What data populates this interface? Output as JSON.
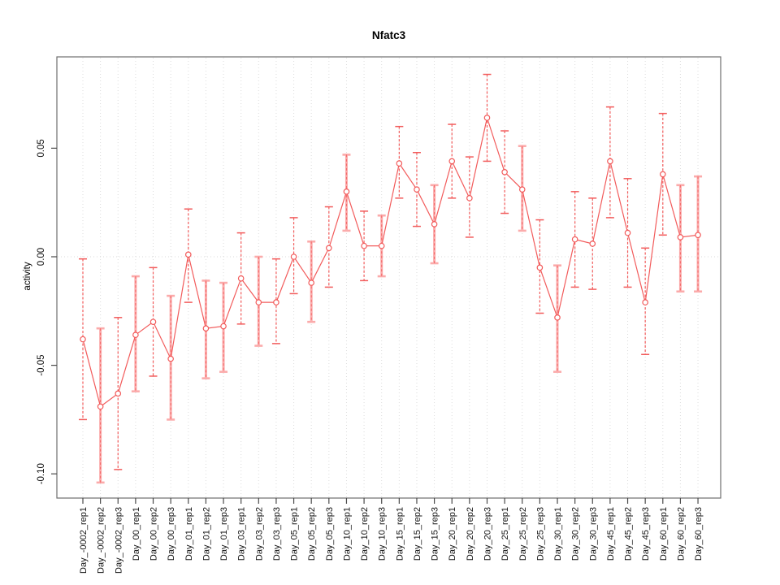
{
  "chart_data": {
    "type": "line",
    "subtype": "points-with-error-bars",
    "title": "Nfatc3",
    "xlabel": "",
    "ylabel": "activity",
    "ylim": [
      -0.113,
      0.092
    ],
    "yticks": [
      {
        "value": 0.05,
        "label": "0.05"
      },
      {
        "value": 0.0,
        "label": "0.00"
      },
      {
        "value": -0.05,
        "label": "-0.05"
      },
      {
        "value": -0.1,
        "label": "-0.10"
      }
    ],
    "grid": {
      "vertical": "dotted line at every category",
      "horizontal": "dotted line at y=0 only"
    },
    "legend": "none",
    "categories": [
      "Day_-0002_rep1",
      "Day_-0002_rep2",
      "Day_-0002_rep3",
      "Day_00_rep1",
      "Day_00_rep2",
      "Day_00_rep3",
      "Day_01_rep1",
      "Day_01_rep2",
      "Day_01_rep3",
      "Day_03_rep1",
      "Day_03_rep2",
      "Day_03_rep3",
      "Day_05_rep1",
      "Day_05_rep2",
      "Day_05_rep3",
      "Day_10_rep1",
      "Day_10_rep2",
      "Day_10_rep3",
      "Day_15_rep1",
      "Day_15_rep2",
      "Day_15_rep3",
      "Day_20_rep1",
      "Day_20_rep2",
      "Day_20_rep3",
      "Day_25_rep1",
      "Day_25_rep2",
      "Day_25_rep3",
      "Day_30_rep1",
      "Day_30_rep2",
      "Day_30_rep3",
      "Day_45_rep1",
      "Day_45_rep2",
      "Day_45_rep3",
      "Day_60_rep1",
      "Day_60_rep2",
      "Day_60_rep3"
    ],
    "series": [
      {
        "name": "activity",
        "marker": "open-circle",
        "line": "solid",
        "points": [
          {
            "label": "Day_-0002_rep1",
            "y": -0.038,
            "lo": -0.075,
            "hi": -0.001,
            "bar": "dashed"
          },
          {
            "label": "Day_-0002_rep2",
            "y": -0.069,
            "lo": -0.104,
            "hi": -0.033,
            "bar": "thick"
          },
          {
            "label": "Day_-0002_rep3",
            "y": -0.063,
            "lo": -0.098,
            "hi": -0.028,
            "bar": "dashed"
          },
          {
            "label": "Day_00_rep1",
            "y": -0.036,
            "lo": -0.062,
            "hi": -0.009,
            "bar": "thick"
          },
          {
            "label": "Day_00_rep2",
            "y": -0.03,
            "lo": -0.055,
            "hi": -0.005,
            "bar": "dashed"
          },
          {
            "label": "Day_00_rep3",
            "y": -0.047,
            "lo": -0.075,
            "hi": -0.018,
            "bar": "thick"
          },
          {
            "label": "Day_01_rep1",
            "y": 0.001,
            "lo": -0.021,
            "hi": 0.022,
            "bar": "dashed"
          },
          {
            "label": "Day_01_rep2",
            "y": -0.033,
            "lo": -0.056,
            "hi": -0.011,
            "bar": "thick"
          },
          {
            "label": "Day_01_rep3",
            "y": -0.032,
            "lo": -0.053,
            "hi": -0.012,
            "bar": "thick"
          },
          {
            "label": "Day_03_rep1",
            "y": -0.01,
            "lo": -0.031,
            "hi": 0.011,
            "bar": "dashed"
          },
          {
            "label": "Day_03_rep2",
            "y": -0.021,
            "lo": -0.041,
            "hi": 0.0,
            "bar": "thick"
          },
          {
            "label": "Day_03_rep3",
            "y": -0.021,
            "lo": -0.04,
            "hi": -0.001,
            "bar": "dashed"
          },
          {
            "label": "Day_05_rep1",
            "y": 0.0,
            "lo": -0.017,
            "hi": 0.018,
            "bar": "dashed"
          },
          {
            "label": "Day_05_rep2",
            "y": -0.012,
            "lo": -0.03,
            "hi": 0.007,
            "bar": "thick"
          },
          {
            "label": "Day_05_rep3",
            "y": 0.004,
            "lo": -0.014,
            "hi": 0.023,
            "bar": "dashed"
          },
          {
            "label": "Day_10_rep1",
            "y": 0.03,
            "lo": 0.012,
            "hi": 0.047,
            "bar": "thick"
          },
          {
            "label": "Day_10_rep2",
            "y": 0.005,
            "lo": -0.011,
            "hi": 0.021,
            "bar": "dashed"
          },
          {
            "label": "Day_10_rep3",
            "y": 0.005,
            "lo": -0.009,
            "hi": 0.019,
            "bar": "thick"
          },
          {
            "label": "Day_15_rep1",
            "y": 0.043,
            "lo": 0.027,
            "hi": 0.06,
            "bar": "dashed"
          },
          {
            "label": "Day_15_rep2",
            "y": 0.031,
            "lo": 0.014,
            "hi": 0.048,
            "bar": "dashed"
          },
          {
            "label": "Day_15_rep3",
            "y": 0.015,
            "lo": -0.003,
            "hi": 0.033,
            "bar": "thick"
          },
          {
            "label": "Day_20_rep1",
            "y": 0.044,
            "lo": 0.027,
            "hi": 0.061,
            "bar": "dashed"
          },
          {
            "label": "Day_20_rep2",
            "y": 0.027,
            "lo": 0.009,
            "hi": 0.046,
            "bar": "dashed"
          },
          {
            "label": "Day_20_rep3",
            "y": 0.064,
            "lo": 0.044,
            "hi": 0.084,
            "bar": "dashed"
          },
          {
            "label": "Day_25_rep1",
            "y": 0.039,
            "lo": 0.02,
            "hi": 0.058,
            "bar": "dashed"
          },
          {
            "label": "Day_25_rep2",
            "y": 0.031,
            "lo": 0.012,
            "hi": 0.051,
            "bar": "thick"
          },
          {
            "label": "Day_25_rep3",
            "y": -0.005,
            "lo": -0.026,
            "hi": 0.017,
            "bar": "dashed"
          },
          {
            "label": "Day_30_rep1",
            "y": -0.028,
            "lo": -0.053,
            "hi": -0.004,
            "bar": "thick"
          },
          {
            "label": "Day_30_rep2",
            "y": 0.008,
            "lo": -0.014,
            "hi": 0.03,
            "bar": "dashed"
          },
          {
            "label": "Day_30_rep3",
            "y": 0.006,
            "lo": -0.015,
            "hi": 0.027,
            "bar": "dashed"
          },
          {
            "label": "Day_45_rep1",
            "y": 0.044,
            "lo": 0.018,
            "hi": 0.069,
            "bar": "dashed"
          },
          {
            "label": "Day_45_rep2",
            "y": 0.011,
            "lo": -0.014,
            "hi": 0.036,
            "bar": "dashed"
          },
          {
            "label": "Day_45_rep3",
            "y": -0.021,
            "lo": -0.045,
            "hi": 0.004,
            "bar": "dashed"
          },
          {
            "label": "Day_60_rep1",
            "y": 0.038,
            "lo": 0.01,
            "hi": 0.066,
            "bar": "dashed"
          },
          {
            "label": "Day_60_rep2",
            "y": 0.009,
            "lo": -0.016,
            "hi": 0.033,
            "bar": "thick"
          },
          {
            "label": "Day_60_rep3",
            "y": 0.01,
            "lo": -0.016,
            "hi": 0.037,
            "bar": "thick"
          }
        ]
      }
    ]
  },
  "colors": {
    "series_red": "#f25b5b",
    "pale_red": "#fbabab",
    "marker_fill": "#ffffff",
    "grid": "#dcdcdc",
    "zero_line": "#d9d9d9",
    "box": "#6e6e6e",
    "tick": "#4a4a4a",
    "text": "#111111",
    "background": "#ffffff"
  }
}
